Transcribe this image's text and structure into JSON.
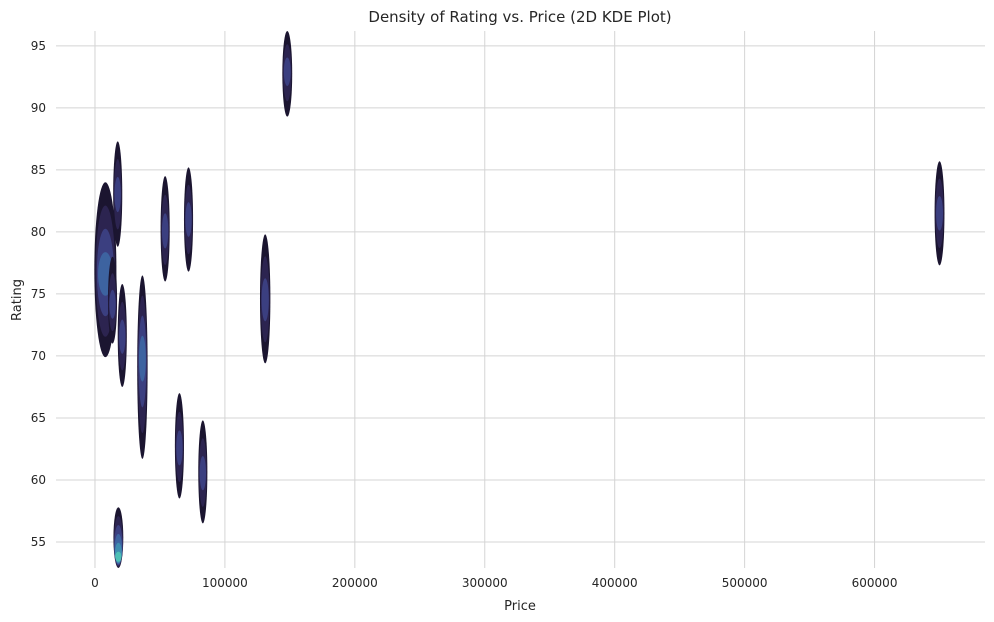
{
  "chart_data": {
    "type": "heatmap",
    "subtype": "2d-kde",
    "title": "Density of Rating vs. Price (2D KDE Plot)",
    "xlabel": "Price",
    "ylabel": "Rating",
    "xlim": [
      -30000,
      685000
    ],
    "ylim": [
      52.9,
      96.2
    ],
    "xticks": [
      0,
      100000,
      200000,
      300000,
      400000,
      500000,
      600000
    ],
    "xtick_labels": [
      "0",
      "100000",
      "200000",
      "300000",
      "400000",
      "500000",
      "600000"
    ],
    "yticks": [
      55,
      60,
      65,
      70,
      75,
      80,
      85,
      90,
      95
    ],
    "ytick_labels": [
      "55",
      "60",
      "65",
      "70",
      "75",
      "80",
      "85",
      "90",
      "95"
    ],
    "grid": true,
    "colormap": [
      "#1b1530",
      "#2c2450",
      "#3b3f80",
      "#3d63a0",
      "#3f8db0",
      "#4dc0b5"
    ],
    "blobs": [
      {
        "x": 8000,
        "y_min": 69.9,
        "y_max": 84.0,
        "peak_y": 76.5,
        "x_halfwidth": 8500,
        "intensity": 0.62
      },
      {
        "x": 13500,
        "y_min": 71.0,
        "y_max": 78.0,
        "peak_y": 74.0,
        "x_halfwidth": 3500,
        "intensity": 0.35
      },
      {
        "x": 17500,
        "y_min": 78.8,
        "y_max": 87.3,
        "peak_y": 83.0,
        "x_halfwidth": 3500,
        "intensity": 0.3
      },
      {
        "x": 21000,
        "y_min": 67.5,
        "y_max": 75.8,
        "peak_y": 71.5,
        "x_halfwidth": 3500,
        "intensity": 0.3
      },
      {
        "x": 18000,
        "y_min": 52.9,
        "y_max": 57.8,
        "peak_y": 53.5,
        "x_halfwidth": 3800,
        "intensity": 1.0
      },
      {
        "x": 36500,
        "y_min": 61.7,
        "y_max": 76.5,
        "peak_y": 70.0,
        "x_halfwidth": 4000,
        "intensity": 0.5
      },
      {
        "x": 54000,
        "y_min": 76.0,
        "y_max": 84.5,
        "peak_y": 80.0,
        "x_halfwidth": 3500,
        "intensity": 0.3
      },
      {
        "x": 72000,
        "y_min": 76.8,
        "y_max": 85.2,
        "peak_y": 81.0,
        "x_halfwidth": 3500,
        "intensity": 0.3
      },
      {
        "x": 65000,
        "y_min": 58.5,
        "y_max": 67.0,
        "peak_y": 62.5,
        "x_halfwidth": 3500,
        "intensity": 0.3
      },
      {
        "x": 83000,
        "y_min": 56.5,
        "y_max": 64.8,
        "peak_y": 60.5,
        "x_halfwidth": 3500,
        "intensity": 0.3
      },
      {
        "x": 131000,
        "y_min": 69.4,
        "y_max": 79.8,
        "peak_y": 74.5,
        "x_halfwidth": 4000,
        "intensity": 0.42
      },
      {
        "x": 148000,
        "y_min": 89.3,
        "y_max": 96.2,
        "peak_y": 93.0,
        "x_halfwidth": 3800,
        "intensity": 0.3
      },
      {
        "x": 650000,
        "y_min": 77.3,
        "y_max": 85.7,
        "peak_y": 81.5,
        "x_halfwidth": 3800,
        "intensity": 0.3
      }
    ]
  }
}
